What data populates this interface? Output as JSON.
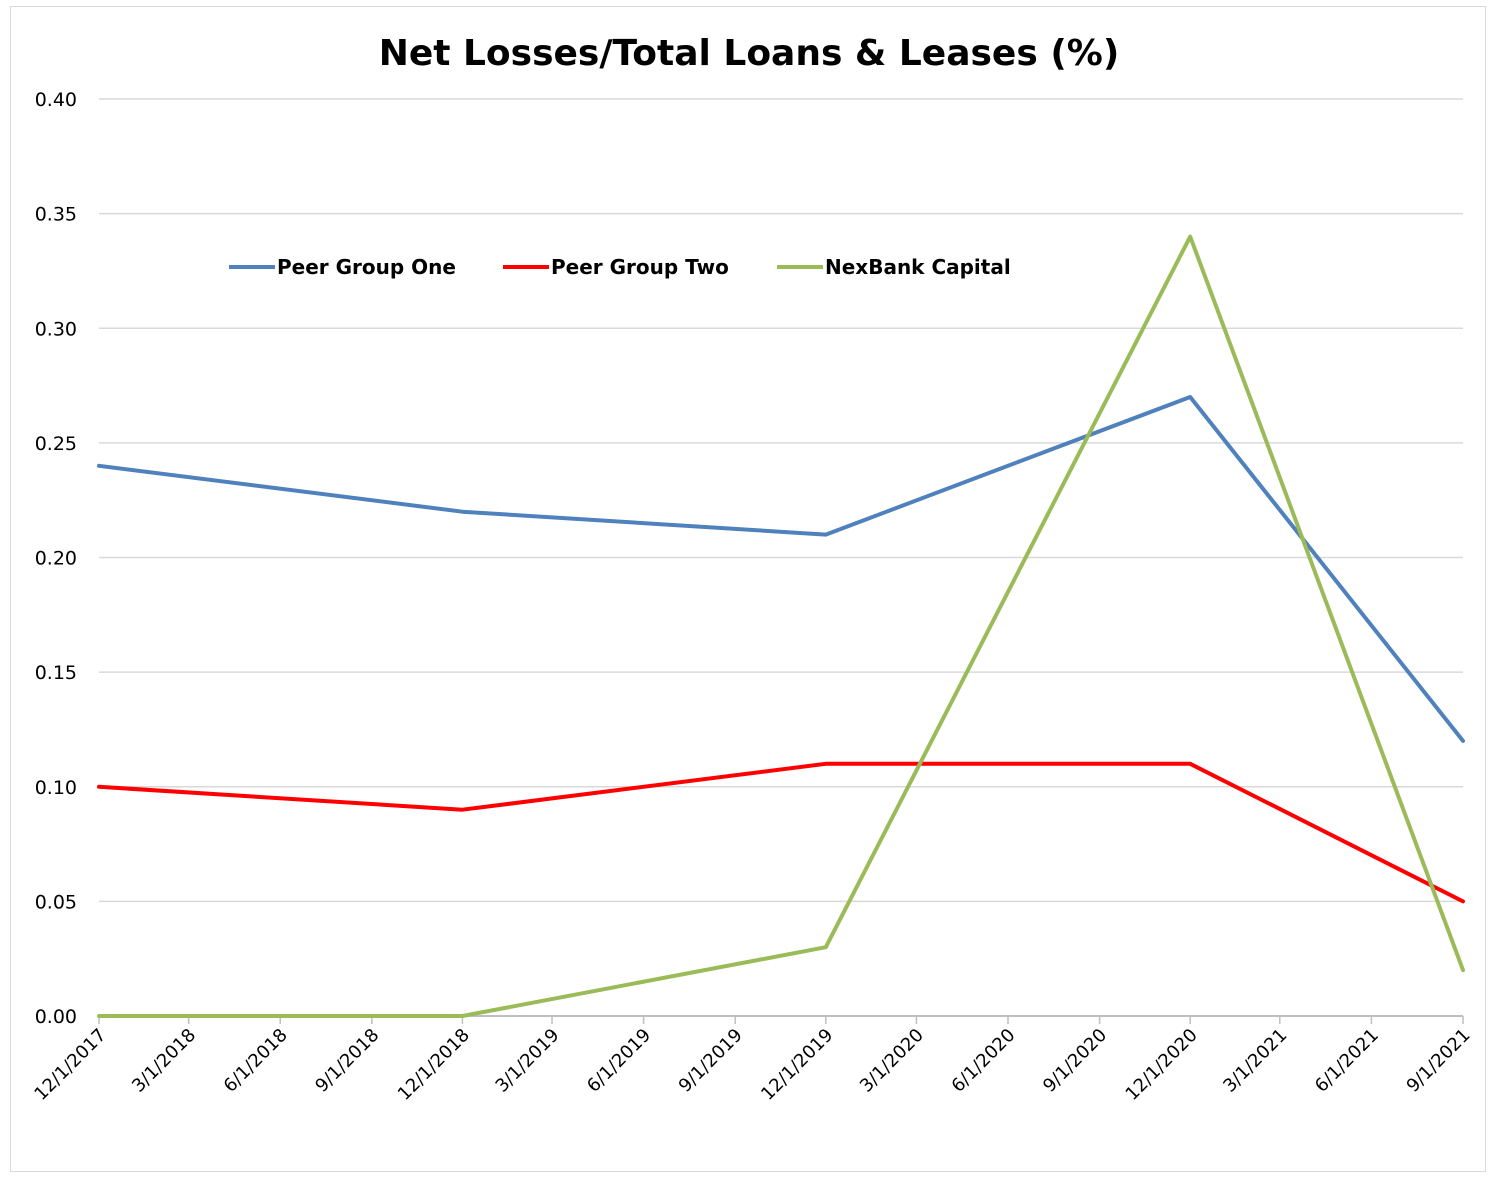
{
  "chart_data": {
    "type": "line",
    "title": "Net Losses/Total Loans & Leases (%)",
    "xlabel": "",
    "ylabel": "",
    "ylim": [
      0,
      0.4
    ],
    "yticks": [
      "0.00",
      "0.05",
      "0.10",
      "0.15",
      "0.20",
      "0.25",
      "0.30",
      "0.35",
      "0.40"
    ],
    "x_tick_labels": [
      "12/1/2017",
      "3/1/2018",
      "6/1/2018",
      "9/1/2018",
      "12/1/2018",
      "3/1/2019",
      "6/1/2019",
      "9/1/2019",
      "12/1/2019",
      "3/1/2020",
      "6/1/2020",
      "9/1/2020",
      "12/1/2020",
      "3/1/2021",
      "6/1/2021",
      "9/1/2021"
    ],
    "x": [
      "12/1/2017",
      "12/1/2018",
      "12/1/2019",
      "12/1/2020",
      "9/1/2021"
    ],
    "series": [
      {
        "name": "Peer Group One",
        "color": "#4f81bd",
        "values": [
          0.24,
          0.22,
          0.21,
          0.27,
          0.12
        ]
      },
      {
        "name": "Peer Group Two",
        "color": "#ff0000",
        "values": [
          0.1,
          0.09,
          0.11,
          0.11,
          0.05
        ]
      },
      {
        "name": "NexBank Capital",
        "color": "#9bbb59",
        "values": [
          0.0,
          0.0,
          0.03,
          0.34,
          0.02
        ]
      }
    ],
    "grid": true,
    "legend_position": "top-left"
  }
}
